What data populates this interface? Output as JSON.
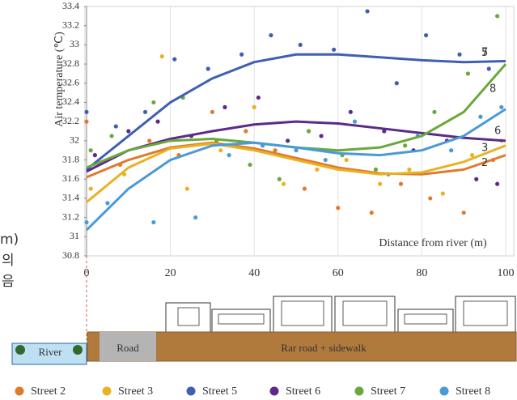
{
  "chart_data": {
    "type": "scatter",
    "y_label": "Air temperature (℃)",
    "x_label": "Distance from river (m)",
    "xlim": [
      0,
      100
    ],
    "xticks": [
      0,
      20,
      40,
      60,
      80,
      100
    ],
    "ylim": [
      30.8,
      33.4
    ],
    "yticks": [
      30.8,
      31,
      31.2,
      31.4,
      31.6,
      31.8,
      32,
      32.2,
      32.4,
      32.6,
      32.8,
      33,
      33.2,
      33.4
    ],
    "grid": true,
    "side_fragments": [
      "m)",
      "의",
      "음"
    ],
    "diagram": {
      "river": "River",
      "road": "Road",
      "rear_road": "Rar road + sidewalk"
    },
    "series": [
      {
        "name": "Street 2",
        "color": "#e07a2e",
        "x": [
          0,
          8,
          15,
          22,
          30,
          38,
          45,
          52,
          60,
          68,
          75,
          82,
          90,
          97
        ],
        "values": [
          32.2,
          31.75,
          32.0,
          31.85,
          32.3,
          32.1,
          31.9,
          31.5,
          31.3,
          31.25,
          31.55,
          31.4,
          31.25,
          31.8
        ]
      },
      {
        "name": "Street 3",
        "color": "#e8b224",
        "x": [
          1,
          9,
          18,
          24,
          32,
          40,
          47,
          55,
          62,
          70,
          77,
          85,
          92,
          99
        ],
        "values": [
          31.5,
          31.65,
          32.88,
          31.5,
          31.9,
          32.35,
          31.55,
          31.7,
          31.8,
          31.55,
          31.7,
          31.45,
          31.85,
          32.0
        ]
      },
      {
        "name": "Street 5",
        "color": "#3e5fb2",
        "x": [
          0,
          7,
          14,
          21,
          29,
          37,
          44,
          51,
          59,
          67,
          74,
          81,
          89,
          96
        ],
        "values": [
          32.3,
          32.15,
          32.3,
          32.85,
          32.75,
          32.9,
          33.1,
          33.0,
          32.95,
          33.35,
          32.6,
          33.1,
          32.9,
          32.75
        ]
      },
      {
        "name": "Street 6",
        "color": "#5b2a8a",
        "x": [
          2,
          10,
          17,
          25,
          33,
          41,
          48,
          56,
          63,
          71,
          78,
          86,
          93,
          98
        ],
        "values": [
          31.85,
          32.1,
          32.2,
          32.05,
          32.35,
          32.45,
          32.0,
          32.05,
          32.3,
          32.1,
          31.9,
          32.0,
          31.6,
          31.55
        ]
      },
      {
        "name": "Street 7",
        "color": "#6aa83c",
        "x": [
          1,
          6,
          16,
          23,
          31,
          39,
          46,
          53,
          61,
          69,
          76,
          83,
          91,
          98
        ],
        "values": [
          31.9,
          32.05,
          32.4,
          32.45,
          32.0,
          31.75,
          31.6,
          32.1,
          31.85,
          31.7,
          31.95,
          32.3,
          32.7,
          33.3
        ]
      },
      {
        "name": "Street 8",
        "color": "#4a9ad8",
        "x": [
          0,
          5,
          16,
          26,
          34,
          42,
          50,
          57,
          64,
          72,
          79,
          87,
          94,
          99
        ],
        "values": [
          31.15,
          31.35,
          31.15,
          31.2,
          31.85,
          31.95,
          31.9,
          31.8,
          32.2,
          31.65,
          32.05,
          31.9,
          32.25,
          32.35
        ]
      }
    ],
    "trend_lines": [
      {
        "label": "2",
        "color": "#e07a2e",
        "x": [
          0,
          10,
          20,
          30,
          40,
          50,
          60,
          70,
          80,
          90,
          100
        ],
        "values": [
          31.62,
          31.8,
          31.93,
          31.98,
          31.92,
          31.82,
          31.72,
          31.66,
          31.65,
          31.7,
          31.85
        ]
      },
      {
        "label": "3",
        "color": "#e8b224",
        "x": [
          0,
          10,
          20,
          30,
          40,
          50,
          60,
          70,
          80,
          90,
          100
        ],
        "values": [
          31.36,
          31.72,
          31.92,
          31.97,
          31.9,
          31.8,
          31.7,
          31.65,
          31.67,
          31.78,
          31.95
        ]
      },
      {
        "label": "5",
        "color": "#3e5fb2",
        "x": [
          0,
          10,
          20,
          30,
          40,
          50,
          60,
          70,
          80,
          90,
          100
        ],
        "values": [
          31.7,
          32.05,
          32.4,
          32.65,
          32.82,
          32.9,
          32.9,
          32.87,
          32.84,
          32.82,
          32.83
        ]
      },
      {
        "label": "6",
        "color": "#5b2a8a",
        "x": [
          0,
          10,
          20,
          30,
          40,
          50,
          60,
          70,
          80,
          90,
          100
        ],
        "values": [
          31.68,
          31.9,
          32.02,
          32.1,
          32.17,
          32.2,
          32.18,
          32.13,
          32.08,
          32.03,
          32.0
        ]
      },
      {
        "label": "7",
        "color": "#6aa83c",
        "x": [
          0,
          10,
          20,
          30,
          40,
          50,
          60,
          70,
          80,
          90,
          100
        ],
        "values": [
          31.72,
          31.9,
          32.0,
          32.02,
          31.98,
          31.93,
          31.9,
          31.93,
          32.05,
          32.3,
          32.8
        ]
      },
      {
        "label": "8",
        "color": "#4a9ad8",
        "x": [
          0,
          10,
          20,
          30,
          40,
          50,
          60,
          70,
          80,
          90,
          100
        ],
        "values": [
          31.07,
          31.5,
          31.8,
          31.95,
          31.98,
          31.93,
          31.87,
          31.85,
          31.9,
          32.05,
          32.33
        ]
      }
    ]
  }
}
